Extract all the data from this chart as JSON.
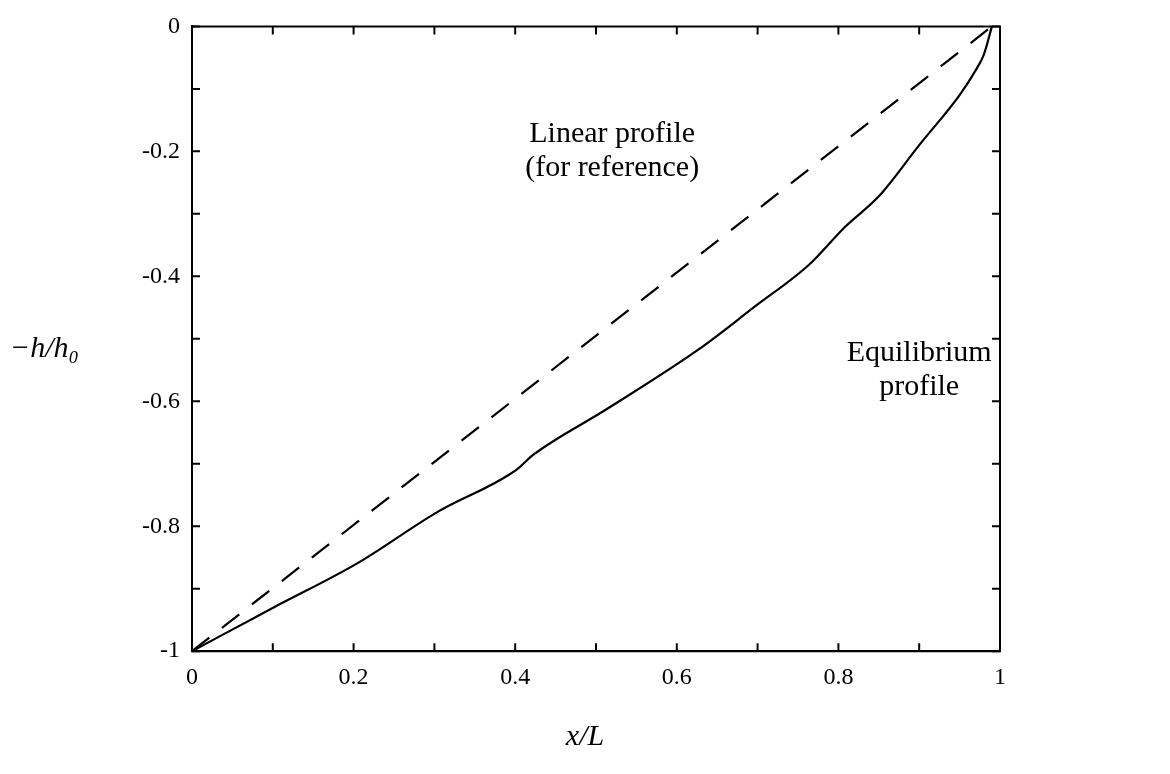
{
  "chart_data": {
    "type": "line",
    "xlabel": "x/L",
    "ylabel": "−h/h₀",
    "xlim": [
      0,
      1
    ],
    "ylim": [
      -1,
      0
    ],
    "xticks": [
      0,
      {
        "value": 0.1,
        "label": null
      },
      0.2,
      {
        "value": 0.3,
        "label": null
      },
      0.4,
      {
        "value": 0.5,
        "label": null
      },
      0.6,
      {
        "value": 0.7,
        "label": null
      },
      0.8,
      {
        "value": 0.9,
        "label": null
      },
      1
    ],
    "yticks": [
      -1,
      {
        "value": -0.9,
        "label": null
      },
      -0.8,
      {
        "value": -0.7,
        "label": null
      },
      -0.6,
      {
        "value": -0.5,
        "label": null
      },
      -0.4,
      {
        "value": -0.3,
        "label": null
      },
      -0.2,
      {
        "value": -0.1,
        "label": null
      },
      0
    ],
    "grid": false,
    "legend": false,
    "marker": "none",
    "series": [
      {
        "color": "#000000",
        "line_style": "dashed",
        "x": [
          0,
          0.99
        ],
        "values": [
          -1,
          0
        ]
      },
      {
        "color": "#000000",
        "line_style": "solid",
        "x": [
          0,
          0.101,
          0.205,
          0.304,
          0.4,
          0.423,
          0.514,
          0.627,
          0.696,
          0.764,
          0.809,
          0.85,
          0.9,
          0.95,
          0.97,
          0.98,
          0.99
        ],
        "values": [
          -1,
          -0.93,
          -0.859,
          -0.777,
          -0.711,
          -0.685,
          -0.612,
          -0.517,
          -0.449,
          -0.381,
          -0.32,
          -0.272,
          -0.19,
          -0.11,
          -0.07,
          -0.045,
          0
        ]
      }
    ],
    "annotations": [
      "Linear profile\n(for reference)",
      "Equilibrium\nprofile"
    ]
  }
}
